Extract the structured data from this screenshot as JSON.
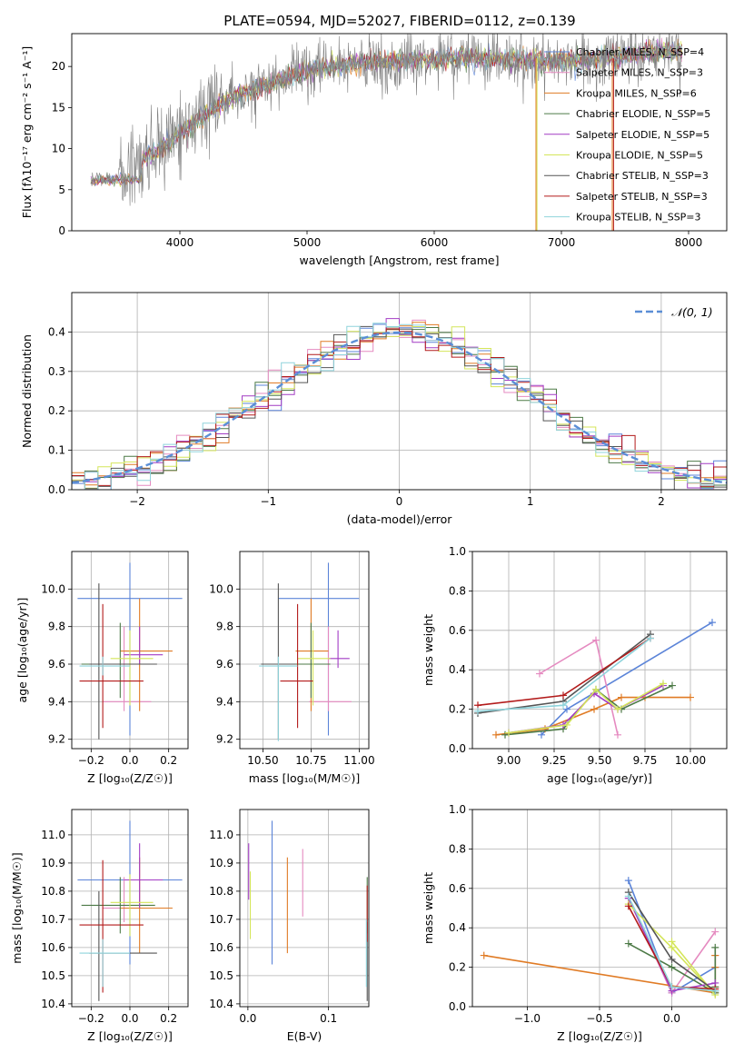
{
  "figure": {
    "title": "PLATE=0594, MJD=52027, FIBERID=0112, z=0.139"
  },
  "chart_data": [
    {
      "id": "spectrum",
      "type": "line",
      "xlabel": "wavelength [Angstrom, rest frame]",
      "ylabel": "Flux [fλ10⁻¹⁷ erg cm⁻² s⁻¹ A⁻¹]",
      "xlim": [
        3150,
        8300
      ],
      "ylim": [
        0,
        24
      ],
      "xticks": [
        "4000",
        "5000",
        "6000",
        "7000",
        "8000"
      ],
      "yticks": [
        "0",
        "5",
        "10",
        "15",
        "20"
      ],
      "legend": [
        {
          "label": "Chabrier MILES, N_SSP=4",
          "color": "#5b84d8"
        },
        {
          "label": "Salpeter MILES, N_SSP=3",
          "color": "#e58ac0"
        },
        {
          "label": "Kroupa MILES, N_SSP=6",
          "color": "#e07b25"
        },
        {
          "label": "Chabrier ELODIE, N_SSP=5",
          "color": "#4d7a47"
        },
        {
          "label": "Salpeter ELODIE, N_SSP=5",
          "color": "#a23cc4"
        },
        {
          "label": "Kroupa ELODIE, N_SSP=5",
          "color": "#d4e55a"
        },
        {
          "label": "Chabrier STELIB, N_SSP=3",
          "color": "#555555"
        },
        {
          "label": "Salpeter STELIB, N_SSP=3",
          "color": "#b31b1b"
        },
        {
          "label": "Kroupa STELIB, N_SSP=3",
          "color": "#8fd4dc"
        }
      ],
      "data_trend": {
        "x": [
          3300,
          3500,
          3700,
          3900,
          4100,
          4300,
          4500,
          4700,
          4900,
          5100,
          5300,
          5500,
          5700,
          5900,
          6100,
          6300,
          6500,
          6700,
          6900,
          7100,
          7300,
          7500,
          7700,
          7900
        ],
        "y": [
          6.2,
          6.4,
          8.5,
          10.5,
          13.0,
          15.2,
          16.8,
          17.8,
          19.0,
          19.8,
          20.2,
          20.5,
          20.6,
          20.9,
          21.0,
          21.0,
          21.0,
          20.8,
          20.6,
          20.8,
          21.0,
          21.4,
          21.7,
          21.9
        ]
      }
    },
    {
      "id": "residuals",
      "type": "line",
      "xlabel": "(data-model)/error",
      "ylabel": "Normed distribution",
      "xlim": [
        -2.5,
        2.5
      ],
      "ylim": [
        0,
        0.5
      ],
      "xticks": [
        "−2",
        "−1",
        "0",
        "1",
        "2"
      ],
      "yticks": [
        "0.0",
        "0.1",
        "0.2",
        "0.3",
        "0.4"
      ],
      "legend": [
        {
          "label": "𝒩(0, 1)",
          "color": "#5b8ed6"
        }
      ],
      "bin_width": 0.1,
      "histogram_colors": [
        "#5b84d8",
        "#e58ac0",
        "#e07b25",
        "#4d7a47",
        "#a23cc4",
        "#d4e55a",
        "#555555",
        "#b31b1b",
        "#8fd4dc"
      ]
    },
    {
      "id": "age-vs-metallicity",
      "type": "scatter",
      "xlabel": "Z [log₁₀(Z/Z☉)]",
      "ylabel": "age  [log₁₀(age/yr)]",
      "xlim": [
        -0.3,
        0.3
      ],
      "ylim": [
        9.15,
        10.2
      ],
      "xticks": [
        "−0.2",
        "0.0",
        "0.2"
      ],
      "yticks": [
        "9.2",
        "9.4",
        "9.6",
        "9.8",
        "10.0"
      ],
      "points": [
        {
          "color": "#5b84d8",
          "x": 0.0,
          "y": 9.95,
          "xerr": [
            0.27,
            0.27
          ],
          "yerr": [
            0.73,
            0.19
          ]
        },
        {
          "color": "#e58ac0",
          "x": -0.03,
          "y": 9.4,
          "xerr": [
            0.11,
            0.14
          ],
          "yerr": [
            0.05,
            0.4
          ]
        },
        {
          "color": "#e07b25",
          "x": 0.05,
          "y": 9.67,
          "xerr": [
            0.1,
            0.17
          ],
          "yerr": [
            0.32,
            0.28
          ]
        },
        {
          "color": "#4d7a47",
          "x": -0.05,
          "y": 9.6,
          "xerr": [
            0.2,
            0.18
          ],
          "yerr": [
            0.18,
            0.22
          ]
        },
        {
          "color": "#a23cc4",
          "x": 0.05,
          "y": 9.65,
          "xerr": [
            0.08,
            0.12
          ],
          "yerr": [
            0.05,
            0.15
          ]
        },
        {
          "color": "#d4e55a",
          "x": 0.0,
          "y": 9.63,
          "xerr": [
            0.1,
            0.12
          ],
          "yerr": [
            0.25,
            0.15
          ]
        },
        {
          "color": "#555555",
          "x": -0.16,
          "y": 9.6,
          "xerr": [
            0.05,
            0.3
          ],
          "yerr": [
            0.4,
            0.43
          ]
        },
        {
          "color": "#b31b1b",
          "x": -0.14,
          "y": 9.51,
          "xerr": [
            0.12,
            0.21
          ],
          "yerr": [
            0.25,
            0.41
          ]
        },
        {
          "color": "#8fd4dc",
          "x": -0.14,
          "y": 9.59,
          "xerr": [
            0.12,
            0.14
          ],
          "yerr": [
            0.05,
            0.05
          ]
        }
      ]
    },
    {
      "id": "age-vs-mass",
      "type": "scatter",
      "xlabel": "mass [log₁₀(M/M☉)]",
      "ylabel": "",
      "xlim": [
        10.38,
        11.05
      ],
      "ylim": [
        9.15,
        10.2
      ],
      "xticks": [
        "10.50",
        "10.75",
        "11.00"
      ],
      "yticks": [
        "9.2",
        "9.4",
        "9.6",
        "9.8",
        "10.0"
      ],
      "points": [
        {
          "color": "#5b84d8",
          "x": 10.84,
          "y": 9.95,
          "xerr": [
            0.26,
            0.16
          ],
          "yerr": [
            0.73,
            0.19
          ]
        },
        {
          "color": "#e58ac0",
          "x": 10.84,
          "y": 9.4,
          "xerr": [
            0.1,
            0.12
          ],
          "yerr": [
            0.05,
            0.4
          ]
        },
        {
          "color": "#e07b25",
          "x": 10.75,
          "y": 9.67,
          "xerr": [
            0.08,
            0.09
          ],
          "yerr": [
            0.32,
            0.28
          ]
        },
        {
          "color": "#4d7a47",
          "x": 10.75,
          "y": 9.6,
          "xerr": [
            0.1,
            0.1
          ],
          "yerr": [
            0.18,
            0.22
          ]
        },
        {
          "color": "#a23cc4",
          "x": 10.89,
          "y": 9.63,
          "xerr": [
            0.05,
            0.06
          ],
          "yerr": [
            0.05,
            0.15
          ]
        },
        {
          "color": "#d4e55a",
          "x": 10.76,
          "y": 9.63,
          "xerr": [
            0.08,
            0.09
          ],
          "yerr": [
            0.25,
            0.15
          ]
        },
        {
          "color": "#555555",
          "x": 10.58,
          "y": 9.6,
          "xerr": [
            0.09,
            0.09
          ],
          "yerr": [
            0.4,
            0.43
          ]
        },
        {
          "color": "#b31b1b",
          "x": 10.68,
          "y": 9.51,
          "xerr": [
            0.09,
            0.08
          ],
          "yerr": [
            0.25,
            0.41
          ]
        },
        {
          "color": "#8fd4dc",
          "x": 10.58,
          "y": 9.59,
          "xerr": [
            0.1,
            0.1
          ],
          "yerr": [
            0.4,
            0.05
          ]
        }
      ]
    },
    {
      "id": "weight-vs-age",
      "type": "line",
      "xlabel": "age  [log₁₀(age/yr)]",
      "ylabel": "mass weight",
      "xlim": [
        8.8,
        10.2
      ],
      "ylim": [
        0,
        1.0
      ],
      "xticks": [
        "9.00",
        "9.25",
        "9.50",
        "9.75",
        "10.00"
      ],
      "yticks": [
        "0.0",
        "0.2",
        "0.4",
        "0.6",
        "0.8",
        "1.0"
      ],
      "series": [
        {
          "color": "#5b84d8",
          "x": [
            9.18,
            9.32,
            10.12
          ],
          "y": [
            0.07,
            0.2,
            0.64
          ]
        },
        {
          "color": "#e58ac0",
          "x": [
            9.17,
            9.48,
            9.6
          ],
          "y": [
            0.38,
            0.55,
            0.07
          ]
        },
        {
          "color": "#e07b25",
          "x": [
            8.93,
            9.2,
            9.47,
            9.62,
            9.75,
            10.0
          ],
          "y": [
            0.07,
            0.1,
            0.2,
            0.26,
            0.26,
            0.26
          ]
        },
        {
          "color": "#4d7a47",
          "x": [
            8.98,
            9.3,
            9.48,
            9.62,
            9.9
          ],
          "y": [
            0.07,
            0.1,
            0.3,
            0.2,
            0.32
          ]
        },
        {
          "color": "#a23cc4",
          "x": [
            9.0,
            9.3,
            9.47,
            9.6,
            9.85
          ],
          "y": [
            0.08,
            0.12,
            0.28,
            0.2,
            0.32
          ]
        },
        {
          "color": "#d4e55a",
          "x": [
            9.0,
            9.32,
            9.48,
            9.6,
            9.85
          ],
          "y": [
            0.08,
            0.12,
            0.3,
            0.2,
            0.33
          ]
        },
        {
          "color": "#555555",
          "x": [
            8.83,
            9.3,
            9.78
          ],
          "y": [
            0.18,
            0.24,
            0.58
          ]
        },
        {
          "color": "#b31b1b",
          "x": [
            8.83,
            9.3,
            9.78
          ],
          "y": [
            0.22,
            0.27,
            0.56
          ]
        },
        {
          "color": "#8fd4dc",
          "x": [
            8.83,
            9.3,
            9.78
          ],
          "y": [
            0.19,
            0.22,
            0.56
          ]
        }
      ]
    },
    {
      "id": "mass-vs-metallicity",
      "type": "scatter",
      "xlabel": "Z [log₁₀(Z/Z☉)]",
      "ylabel": "mass [log₁₀(M/M☉)]",
      "xlim": [
        -0.3,
        0.3
      ],
      "ylim": [
        10.39,
        11.09
      ],
      "xticks": [
        "−0.2",
        "0.0",
        "0.2"
      ],
      "yticks": [
        "10.4",
        "10.5",
        "10.6",
        "10.7",
        "10.8",
        "10.9",
        "11.0"
      ],
      "points": [
        {
          "color": "#5b84d8",
          "x": 0.0,
          "y": 10.84,
          "xerr": [
            0.27,
            0.27
          ],
          "yerr": [
            0.3,
            0.21
          ]
        },
        {
          "color": "#e58ac0",
          "x": -0.03,
          "y": 10.74,
          "xerr": [
            0.11,
            0.14
          ],
          "yerr": [
            0.05,
            0.11
          ]
        },
        {
          "color": "#e07b25",
          "x": 0.05,
          "y": 10.74,
          "xerr": [
            0.1,
            0.17
          ],
          "yerr": [
            0.16,
            0.18
          ]
        },
        {
          "color": "#4d7a47",
          "x": -0.05,
          "y": 10.75,
          "xerr": [
            0.2,
            0.18
          ],
          "yerr": [
            0.1,
            0.1
          ]
        },
        {
          "color": "#a23cc4",
          "x": 0.05,
          "y": 10.84,
          "xerr": [
            0.08,
            0.12
          ],
          "yerr": [
            0.1,
            0.13
          ]
        },
        {
          "color": "#d4e55a",
          "x": 0.0,
          "y": 10.76,
          "xerr": [
            0.1,
            0.12
          ],
          "yerr": [
            0.12,
            0.1
          ]
        },
        {
          "color": "#555555",
          "x": -0.16,
          "y": 10.58,
          "xerr": [
            0.05,
            0.3
          ],
          "yerr": [
            0.17,
            0.22
          ]
        },
        {
          "color": "#b31b1b",
          "x": -0.14,
          "y": 10.68,
          "xerr": [
            0.12,
            0.21
          ],
          "yerr": [
            0.24,
            0.23
          ]
        },
        {
          "color": "#8fd4dc",
          "x": -0.14,
          "y": 10.58,
          "xerr": [
            0.12,
            0.14
          ],
          "yerr": [
            0.12,
            0.05
          ]
        }
      ]
    },
    {
      "id": "mass-vs-ebv",
      "type": "scatter",
      "xlabel": "E(B-V)",
      "ylabel": "",
      "xlim": [
        -0.01,
        0.15
      ],
      "ylim": [
        10.39,
        11.09
      ],
      "xticks": [
        "0.0",
        "0.1"
      ],
      "yticks": [
        "10.4",
        "10.5",
        "10.6",
        "10.7",
        "10.8",
        "10.9",
        "11.0"
      ],
      "points": [
        {
          "color": "#5b84d8",
          "x": 0.03,
          "y": 10.84,
          "xerr": [
            0,
            0
          ],
          "yerr": [
            0.3,
            0.21
          ]
        },
        {
          "color": "#e58ac0",
          "x": 0.068,
          "y": 10.83,
          "xerr": [
            0,
            0
          ],
          "yerr": [
            0.12,
            0.12
          ]
        },
        {
          "color": "#e07b25",
          "x": 0.049,
          "y": 10.74,
          "xerr": [
            0,
            0
          ],
          "yerr": [
            0.16,
            0.18
          ]
        },
        {
          "color": "#4d7a47",
          "x": 0.148,
          "y": 10.75,
          "xerr": [
            0,
            0
          ],
          "yerr": [
            0.1,
            0.1
          ]
        },
        {
          "color": "#a23cc4",
          "x": 0.001,
          "y": 10.87,
          "xerr": [
            0,
            0
          ],
          "yerr": [
            0.1,
            0.1
          ]
        },
        {
          "color": "#d4e55a",
          "x": 0.003,
          "y": 10.75,
          "xerr": [
            0,
            0
          ],
          "yerr": [
            0.12,
            0.12
          ]
        },
        {
          "color": "#555555",
          "x": 0.148,
          "y": 10.55,
          "xerr": [
            0,
            0
          ],
          "yerr": [
            0.14,
            0.14
          ]
        },
        {
          "color": "#b31b1b",
          "x": 0.148,
          "y": 10.72,
          "xerr": [
            0,
            0
          ],
          "yerr": [
            0.1,
            0.1
          ]
        },
        {
          "color": "#8fd4dc",
          "x": 0.147,
          "y": 10.58,
          "xerr": [
            0,
            0
          ],
          "yerr": [
            0.12,
            0.12
          ]
        }
      ]
    },
    {
      "id": "weight-vs-metallicity",
      "type": "line",
      "xlabel": "Z [log₁₀(Z/Z☉)]",
      "ylabel": "mass weight",
      "xlim": [
        -1.38,
        0.38
      ],
      "ylim": [
        0,
        1.0
      ],
      "xticks": [
        "−1.0",
        "−0.5",
        "0.0"
      ],
      "yticks": [
        "0.0",
        "0.2",
        "0.4",
        "0.6",
        "0.8",
        "1.0"
      ],
      "series": [
        {
          "color": "#5b84d8",
          "x": [
            -0.3,
            0.0,
            0.3
          ],
          "y": [
            0.64,
            0.07,
            0.2
          ]
        },
        {
          "color": "#e58ac0",
          "x": [
            -0.3,
            0.0,
            0.3
          ],
          "y": [
            0.55,
            0.07,
            0.38
          ]
        },
        {
          "color": "#e07b25",
          "x": [
            -1.3,
            0.3,
            0.3,
            0.3,
            0.3,
            0.3
          ],
          "y": [
            0.26,
            0.07,
            0.26,
            0.2,
            0.1,
            0.26
          ]
        },
        {
          "color": "#4d7a47",
          "x": [
            -0.3,
            0.0,
            0.3,
            0.3,
            0.3
          ],
          "y": [
            0.32,
            0.2,
            0.07,
            0.1,
            0.3
          ]
        },
        {
          "color": "#a23cc4",
          "x": [
            -0.3,
            0.0,
            0.3
          ],
          "y": [
            0.55,
            0.08,
            0.12
          ]
        },
        {
          "color": "#d4e55a",
          "x": [
            -0.3,
            0.0,
            0.3,
            0.0
          ],
          "y": [
            0.52,
            0.3,
            0.06,
            0.33
          ]
        },
        {
          "color": "#555555",
          "x": [
            -0.3,
            0.0,
            0.3
          ],
          "y": [
            0.58,
            0.24,
            0.08
          ]
        },
        {
          "color": "#b31b1b",
          "x": [
            -0.3,
            0.0,
            0.3
          ],
          "y": [
            0.51,
            0.1,
            0.09
          ]
        },
        {
          "color": "#8fd4dc",
          "x": [
            -0.3,
            0.0,
            0.3
          ],
          "y": [
            0.56,
            0.1,
            0.08
          ]
        }
      ]
    }
  ]
}
